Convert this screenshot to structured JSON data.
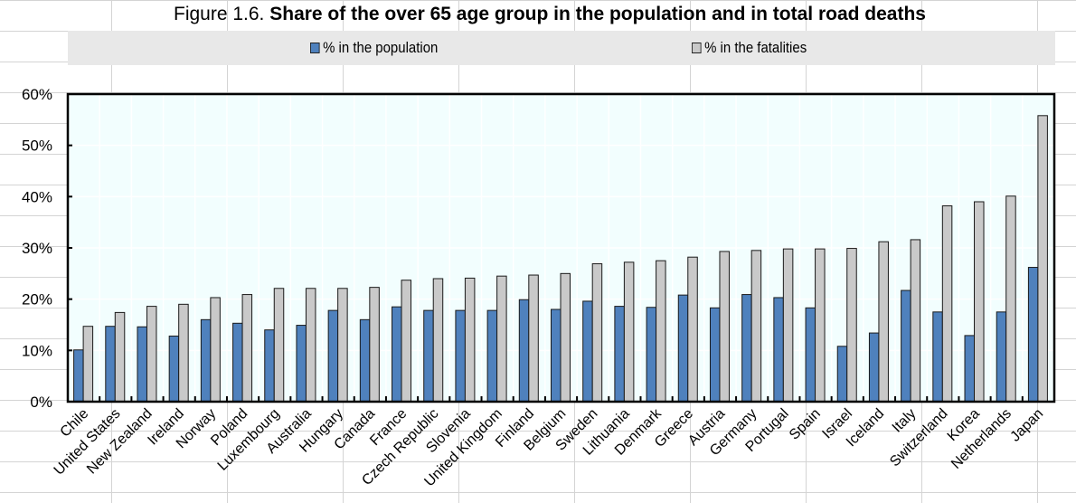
{
  "title": {
    "prefix": "Figure 1.6.",
    "main": "Share of the over 65 age group in the population and in total road deaths"
  },
  "colors": {
    "population": "#4f81bd",
    "fatalities": "#c9c9c9",
    "plot_background": "#f2fefe",
    "legend_background": "#e8e8e8",
    "sheet_grid": "#d4d4d4"
  },
  "chart_data": {
    "type": "bar",
    "title": "Figure 1.6. Share of the over 65 age group in the population and in total road deaths",
    "xlabel": "",
    "ylabel": "",
    "ylim": [
      0,
      60
    ],
    "yticks": [
      "0%",
      "10%",
      "20%",
      "30%",
      "40%",
      "50%",
      "60%"
    ],
    "ytick_values": [
      0,
      10,
      20,
      30,
      40,
      50,
      60
    ],
    "grid": true,
    "legend_position": "top",
    "categories": [
      "Chile",
      "United States",
      "New Zealand",
      "Ireland",
      "Norway",
      "Poland",
      "Luxembourg",
      "Australia",
      "Hungary",
      "Canada",
      "France",
      "Czech Republic",
      "Slovenia",
      "United Kingdom",
      "Finland",
      "Belgium",
      "Sweden",
      "Lithuania",
      "Denmark",
      "Greece",
      "Austria",
      "Germany",
      "Portugal",
      "Spain",
      "Israel",
      "Iceland",
      "Italy",
      "Switzerland",
      "Korea",
      "Netherlands",
      "Japan"
    ],
    "series": [
      {
        "name": "% in the population",
        "values": [
          10.1,
          14.7,
          14.6,
          12.8,
          16.0,
          15.3,
          14.0,
          14.9,
          17.8,
          16.0,
          18.5,
          17.8,
          17.8,
          17.8,
          19.9,
          18.0,
          19.6,
          18.6,
          18.4,
          20.8,
          18.3,
          20.9,
          20.3,
          18.3,
          10.8,
          13.4,
          21.7,
          17.5,
          12.9,
          17.5,
          26.2
        ]
      },
      {
        "name": "% in the fatalities",
        "values": [
          14.7,
          17.4,
          18.6,
          19.0,
          20.3,
          20.9,
          22.1,
          22.1,
          22.1,
          22.3,
          23.7,
          24.0,
          24.1,
          24.5,
          24.7,
          25.0,
          26.9,
          27.2,
          27.5,
          28.2,
          29.3,
          29.5,
          29.8,
          29.8,
          29.9,
          31.2,
          31.6,
          38.2,
          39.0,
          40.1,
          55.8
        ]
      }
    ]
  }
}
